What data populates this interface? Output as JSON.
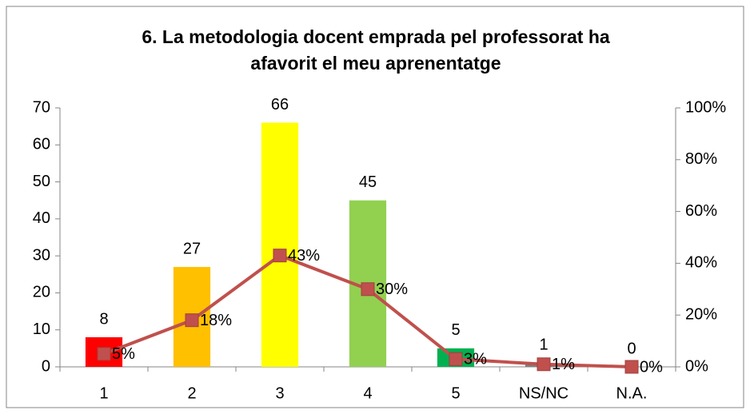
{
  "chart_data": {
    "type": "bar",
    "title": [
      "6. La metodologia docent emprada pel professorat ha",
      "afavorit el meu aprenentatge"
    ],
    "categories": [
      "1",
      "2",
      "3",
      "4",
      "5",
      "NS/NC",
      "N.A."
    ],
    "series": [
      {
        "type": "bar",
        "values": [
          8,
          27,
          66,
          45,
          5,
          1,
          0
        ],
        "colors": [
          "#ff0000",
          "#ffc000",
          "#ffff00",
          "#92d050",
          "#00b050",
          "#7f7f7f",
          "#7f7f7f"
        ]
      },
      {
        "type": "line",
        "axis": "y2",
        "color": "#c0504d",
        "values": [
          5,
          18,
          43,
          30,
          3,
          1,
          0
        ],
        "value_labels": [
          "5%",
          "18%",
          "43%",
          "30%",
          "3%",
          "1%",
          "0%"
        ]
      }
    ],
    "ylim": [
      0,
      70
    ],
    "yticks": [
      0,
      10,
      20,
      30,
      40,
      50,
      60,
      70
    ],
    "y2lim": [
      0,
      100
    ],
    "y2ticks": [
      {
        "value": 0,
        "label": "0%"
      },
      {
        "value": 20,
        "label": "20%"
      },
      {
        "value": 40,
        "label": "40%"
      },
      {
        "value": 60,
        "label": "60%"
      },
      {
        "value": 80,
        "label": "80%"
      },
      {
        "value": 100,
        "label": "100%"
      }
    ],
    "grid": false
  }
}
